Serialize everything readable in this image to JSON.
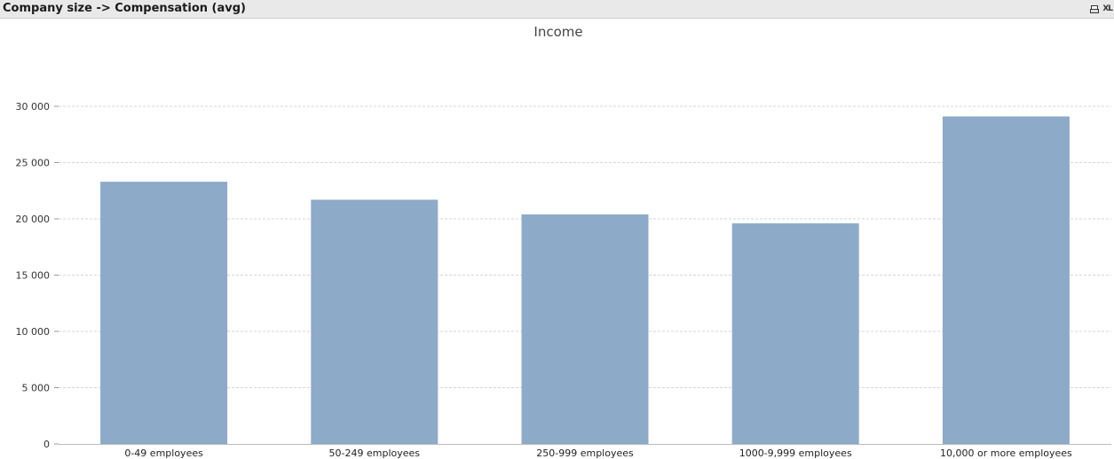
{
  "window": {
    "title": "Company size -> Compensation (avg)",
    "icons": [
      "print-icon",
      "xl-export-icon"
    ],
    "xl_label": "XL"
  },
  "chart_data": {
    "type": "bar",
    "title": "Income",
    "categories": [
      "0-49 employees",
      "50-249 employees",
      "250-999 employees",
      "1000-9,999 employees",
      "10,000 or more employees"
    ],
    "values": [
      23300,
      21700,
      20400,
      19600,
      29100
    ],
    "ylim": [
      0,
      30000
    ],
    "yticks": [
      0,
      5000,
      10000,
      15000,
      20000,
      25000,
      30000
    ],
    "ytick_labels": [
      "0",
      "5 000",
      "10 000",
      "15 000",
      "20 000",
      "25 000",
      "30 000"
    ],
    "grid": true,
    "bar_color": "#8eaac9",
    "grid_color": "#d6d6d6"
  }
}
